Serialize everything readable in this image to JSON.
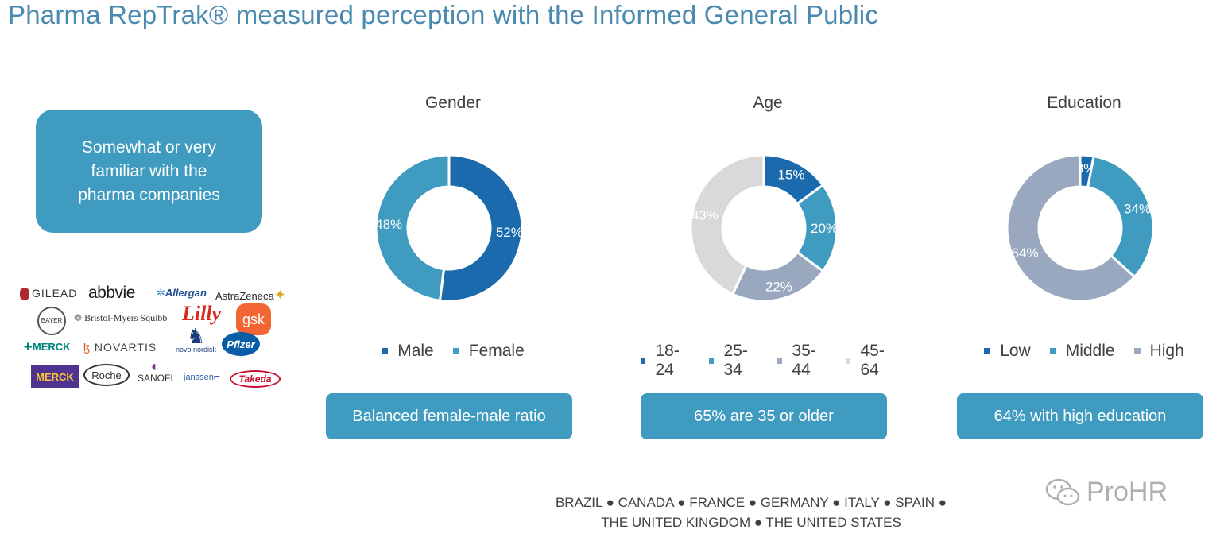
{
  "page": {
    "title": "Pharma RepTrak® measured perception with the Informed General Public",
    "familiar_box": "Somewhat or very familiar with the pharma companies",
    "countries_line1": "BRAZIL ● CANADA ● FRANCE ● GERMANY ● ITALY ● SPAIN ●",
    "countries_line2": "THE UNITED KINGDOM ● THE UNITED STATES",
    "watermark": "ProHR",
    "logos": [
      "GILEAD",
      "abbvie",
      "Allergan",
      "AstraZeneca",
      "BAYER",
      "Bristol-Myers Squibb",
      "Lilly",
      "gsk",
      "MERCK",
      "NOVARTIS",
      "novo nordisk",
      "Pfizer",
      "MERCK",
      "Roche",
      "SANOFI",
      "janssen",
      "Takeda"
    ]
  },
  "colors": {
    "title": "#4a8ab0",
    "box": "#3f9bbf",
    "dark_blue": "#1b6aad",
    "mid_blue": "#3f9bbf",
    "gray_blue": "#9aa8bf",
    "light_gray": "#d9d9d9"
  },
  "chart_data": [
    {
      "type": "pie",
      "title": "Gender",
      "categories": [
        "Male",
        "Female"
      ],
      "values": [
        52,
        48
      ],
      "labels": [
        "52%",
        "48%"
      ],
      "colors": [
        "#1b6aad",
        "#3f9bbf"
      ],
      "legend": "bottom",
      "summary": "Balanced female-male ratio"
    },
    {
      "type": "pie",
      "title": "Age",
      "categories": [
        "18-24",
        "25-34",
        "35-44",
        "45-64"
      ],
      "values": [
        15,
        20,
        22,
        43
      ],
      "labels": [
        "15%",
        "20%",
        "22%",
        "43%"
      ],
      "colors": [
        "#1b6aad",
        "#3f9bbf",
        "#9aa8bf",
        "#d9d9d9"
      ],
      "legend": "bottom",
      "summary": "65% are 35 or older"
    },
    {
      "type": "pie",
      "title": "Education",
      "categories": [
        "Low",
        "Middle",
        "High"
      ],
      "values": [
        3,
        34,
        64
      ],
      "labels": [
        "3%",
        "34%",
        "64%"
      ],
      "colors": [
        "#1b6aad",
        "#3f9bbf",
        "#9aa8bf"
      ],
      "legend": "bottom",
      "summary": "64% with high education"
    }
  ]
}
